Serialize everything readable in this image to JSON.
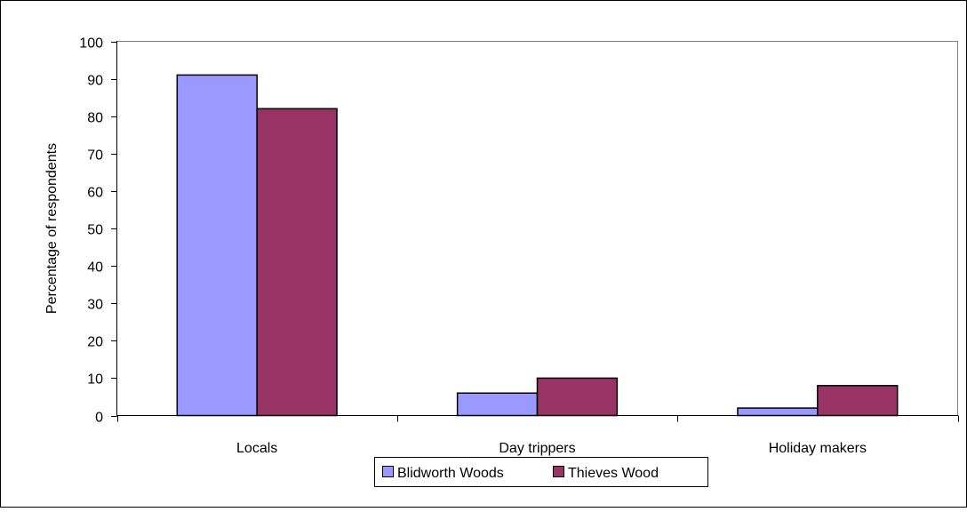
{
  "chart_data": {
    "type": "bar",
    "title": "",
    "xlabel": "",
    "ylabel": "Percentage of respondents",
    "categories": [
      "Locals",
      "Day trippers",
      "Holiday makers"
    ],
    "series": [
      {
        "name": "Blidworth Woods",
        "values": [
          91,
          6,
          2
        ],
        "color": "#9999FF"
      },
      {
        "name": "Thieves Wood",
        "values": [
          82,
          10,
          8
        ],
        "color": "#993366"
      }
    ],
    "ylim": [
      0,
      100
    ],
    "yticks": [
      0,
      10,
      20,
      30,
      40,
      50,
      60,
      70,
      80,
      90,
      100
    ],
    "grid": false,
    "legend_position": "bottom-center"
  }
}
